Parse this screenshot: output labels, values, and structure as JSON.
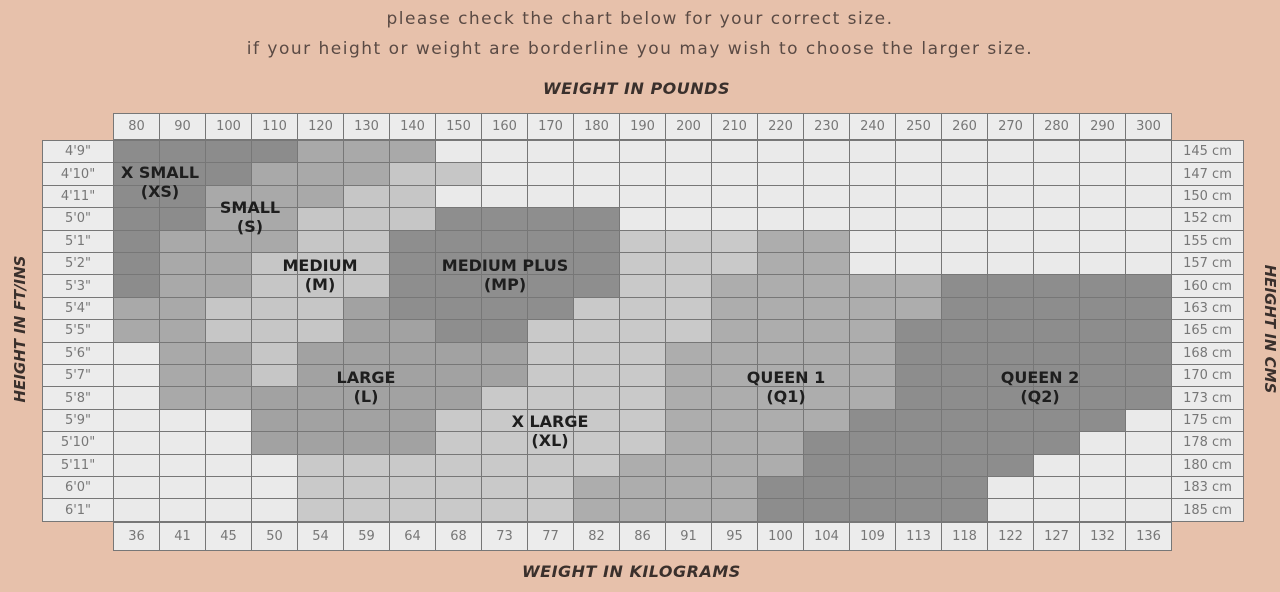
{
  "intro": {
    "line1": "please check the chart below for your correct size.",
    "line2": "if your height or weight are borderline you may wish to choose the larger size."
  },
  "chart_data": {
    "type": "table",
    "top_axis_title": "WEIGHT IN POUNDS",
    "bottom_axis_title": "WEIGHT IN KILOGRAMS",
    "left_axis_title": "HEIGHT IN FT/INS",
    "right_axis_title": "HEIGHT IN CMS",
    "weights_lb": [
      "80",
      "90",
      "100",
      "110",
      "120",
      "130",
      "140",
      "150",
      "160",
      "170",
      "180",
      "190",
      "200",
      "210",
      "220",
      "230",
      "240",
      "250",
      "260",
      "270",
      "280",
      "290",
      "300"
    ],
    "weights_kg": [
      "36",
      "41",
      "45",
      "50",
      "54",
      "59",
      "64",
      "68",
      "73",
      "77",
      "82",
      "86",
      "91",
      "95",
      "100",
      "104",
      "109",
      "113",
      "118",
      "122",
      "127",
      "132",
      "136"
    ],
    "heights_ft": [
      "4'9\"",
      "4'10\"",
      "4'11\"",
      "5'0\"",
      "5'1\"",
      "5'2\"",
      "5'3\"",
      "5'4\"",
      "5'5\"",
      "5'6\"",
      "5'7\"",
      "5'8\"",
      "5'9\"",
      "5'10\"",
      "5'11\"",
      "6'0\"",
      "6'1\""
    ],
    "heights_cm": [
      "145 cm",
      "147 cm",
      "150 cm",
      "152 cm",
      "155 cm",
      "157 cm",
      "160 cm",
      "163 cm",
      "165 cm",
      "168 cm",
      "170 cm",
      "173 cm",
      "175 cm",
      "178 cm",
      "180 cm",
      "183 cm",
      "185 cm"
    ],
    "size_grid": [
      [
        "XS",
        "XS",
        "XS",
        "XS",
        "S",
        "S",
        "S",
        "-",
        "-",
        "-",
        "-",
        "-",
        "-",
        "-",
        "-",
        "-",
        "-",
        "-",
        "-",
        "-",
        "-",
        "-",
        "-"
      ],
      [
        "XS",
        "XS",
        "XS",
        "S",
        "S",
        "S",
        "M",
        "M",
        "-",
        "-",
        "-",
        "-",
        "-",
        "-",
        "-",
        "-",
        "-",
        "-",
        "-",
        "-",
        "-",
        "-",
        "-"
      ],
      [
        "XS",
        "XS",
        "S",
        "S",
        "S",
        "M",
        "M",
        "-",
        "-",
        "-",
        "-",
        "-",
        "-",
        "-",
        "-",
        "-",
        "-",
        "-",
        "-",
        "-",
        "-",
        "-",
        "-"
      ],
      [
        "XS",
        "XS",
        "S",
        "S",
        "M",
        "M",
        "M",
        "MP",
        "MP",
        "MP",
        "MP",
        "-",
        "-",
        "-",
        "-",
        "-",
        "-",
        "-",
        "-",
        "-",
        "-",
        "-",
        "-"
      ],
      [
        "XS",
        "S",
        "S",
        "S",
        "M",
        "M",
        "MP",
        "MP",
        "MP",
        "MP",
        "MP",
        "XL",
        "XL",
        "XL",
        "Q1",
        "Q1",
        "-",
        "-",
        "-",
        "-",
        "-",
        "-",
        "-"
      ],
      [
        "XS",
        "S",
        "S",
        "M",
        "M",
        "M",
        "MP",
        "MP",
        "MP",
        "MP",
        "MP",
        "XL",
        "XL",
        "XL",
        "Q1",
        "Q1",
        "-",
        "-",
        "-",
        "-",
        "-",
        "-",
        "-"
      ],
      [
        "XS",
        "S",
        "S",
        "M",
        "M",
        "M",
        "MP",
        "MP",
        "MP",
        "MP",
        "MP",
        "XL",
        "XL",
        "Q1",
        "Q1",
        "Q1",
        "Q1",
        "Q1",
        "Q2",
        "Q2",
        "Q2",
        "Q2",
        "Q2"
      ],
      [
        "S",
        "S",
        "M",
        "M",
        "M",
        "L",
        "MP",
        "MP",
        "MP",
        "MP",
        "XL",
        "XL",
        "XL",
        "Q1",
        "Q1",
        "Q1",
        "Q1",
        "Q1",
        "Q2",
        "Q2",
        "Q2",
        "Q2",
        "Q2"
      ],
      [
        "S",
        "S",
        "M",
        "M",
        "M",
        "L",
        "L",
        "MP",
        "MP",
        "XL",
        "XL",
        "XL",
        "XL",
        "Q1",
        "Q1",
        "Q1",
        "Q1",
        "Q2",
        "Q2",
        "Q2",
        "Q2",
        "Q2",
        "Q2"
      ],
      [
        "-",
        "S",
        "S",
        "M",
        "L",
        "L",
        "L",
        "L",
        "L",
        "XL",
        "XL",
        "XL",
        "Q1",
        "Q1",
        "Q1",
        "Q1",
        "Q1",
        "Q2",
        "Q2",
        "Q2",
        "Q2",
        "Q2",
        "Q2"
      ],
      [
        "-",
        "S",
        "S",
        "M",
        "L",
        "L",
        "L",
        "L",
        "L",
        "XL",
        "XL",
        "XL",
        "Q1",
        "Q1",
        "Q1",
        "Q1",
        "Q1",
        "Q2",
        "Q2",
        "Q2",
        "Q2",
        "Q2",
        "Q2"
      ],
      [
        "-",
        "S",
        "S",
        "L",
        "L",
        "L",
        "L",
        "L",
        "XL",
        "XL",
        "XL",
        "XL",
        "Q1",
        "Q1",
        "Q1",
        "Q1",
        "Q1",
        "Q2",
        "Q2",
        "Q2",
        "Q2",
        "Q2",
        "Q2"
      ],
      [
        "-",
        "-",
        "-",
        "L",
        "L",
        "L",
        "L",
        "XL",
        "XL",
        "XL",
        "XL",
        "XL",
        "Q1",
        "Q1",
        "Q1",
        "Q1",
        "Q2",
        "Q2",
        "Q2",
        "Q2",
        "Q2",
        "Q2",
        "-"
      ],
      [
        "-",
        "-",
        "-",
        "L",
        "L",
        "L",
        "L",
        "XL",
        "XL",
        "XL",
        "XL",
        "XL",
        "Q1",
        "Q1",
        "Q1",
        "Q2",
        "Q2",
        "Q2",
        "Q2",
        "Q2",
        "Q2",
        "-",
        "-"
      ],
      [
        "-",
        "-",
        "-",
        "-",
        "XL",
        "XL",
        "XL",
        "XL",
        "XL",
        "XL",
        "XL",
        "Q1",
        "Q1",
        "Q1",
        "Q1",
        "Q2",
        "Q2",
        "Q2",
        "Q2",
        "Q2",
        "-",
        "-",
        "-"
      ],
      [
        "-",
        "-",
        "-",
        "-",
        "XL",
        "XL",
        "XL",
        "XL",
        "XL",
        "XL",
        "Q1",
        "Q1",
        "Q1",
        "Q1",
        "Q2",
        "Q2",
        "Q2",
        "Q2",
        "Q2",
        "-",
        "-",
        "-",
        "-"
      ],
      [
        "-",
        "-",
        "-",
        "-",
        "XL",
        "XL",
        "XL",
        "XL",
        "XL",
        "XL",
        "Q1",
        "Q1",
        "Q1",
        "Q1",
        "Q2",
        "Q2",
        "Q2",
        "Q2",
        "Q2",
        "-",
        "-",
        "-",
        "-"
      ]
    ],
    "size_colors": {
      "XS": "#8c8c8c",
      "S": "#a9a9a9",
      "M": "#c6c6c6",
      "MP": "#8e8e8e",
      "L": "#a2a2a2",
      "XL": "#c9c9c9",
      "Q1": "#adadad",
      "Q2": "#8d8d8d",
      "-": "#eaeaea"
    },
    "regions": [
      {
        "code": "XS",
        "name": "X SMALL",
        "abbr": "(XS)"
      },
      {
        "code": "S",
        "name": "SMALL",
        "abbr": "(S)"
      },
      {
        "code": "M",
        "name": "MEDIUM",
        "abbr": "(M)"
      },
      {
        "code": "MP",
        "name": "MEDIUM PLUS",
        "abbr": "(MP)"
      },
      {
        "code": "L",
        "name": "LARGE",
        "abbr": "(L)"
      },
      {
        "code": "XL",
        "name": "X LARGE",
        "abbr": "(XL)"
      },
      {
        "code": "Q1",
        "name": "QUEEN 1",
        "abbr": "(Q1)"
      },
      {
        "code": "Q2",
        "name": "QUEEN 2",
        "abbr": "(Q2)"
      }
    ]
  }
}
